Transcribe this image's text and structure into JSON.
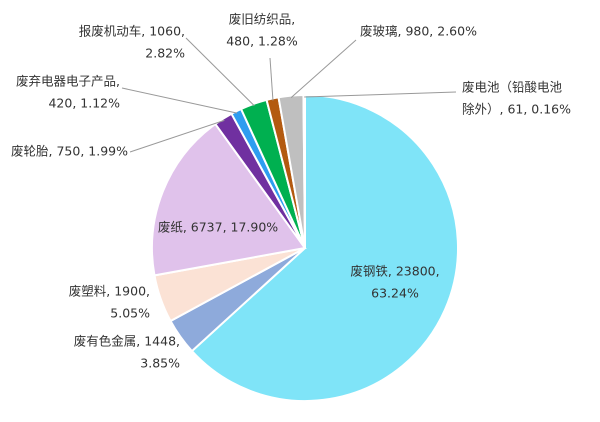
{
  "chart_data": {
    "type": "pie",
    "categories": [
      "废钢铁",
      "废有色金属",
      "废塑料",
      "废纸",
      "废轮胎",
      "废弃电器电子产品",
      "报废机动车",
      "废旧纺织品",
      "废玻璃",
      "废电池（铅酸电池除外）"
    ],
    "values": [
      23800,
      1448,
      1900,
      6737,
      750,
      420,
      1060,
      480,
      980,
      61
    ],
    "value_labels": [
      [
        "废钢铁, 23800,",
        "63.24%"
      ],
      [
        "废有色金属, 1448,",
        "3.85%"
      ],
      [
        "废塑料, 1900,",
        "5.05%"
      ],
      [
        "废纸, 6737, 17.90%"
      ],
      [
        "废轮胎, 750, 1.99%"
      ],
      [
        "废弃电器电子产品,",
        "420, 1.12%"
      ],
      [
        "报废机动车, 1060,",
        "2.82%"
      ],
      [
        "废旧纺织品,",
        "480, 1.28%"
      ],
      [
        "废玻璃, 980, 2.60%"
      ],
      [
        "废电池（铅酸电池",
        "除外）, 61, 0.16%"
      ]
    ],
    "colors": [
      "#7fe4f8",
      "#8eaadb",
      "#fbe2d5",
      "#e0c2eb",
      "#7030a0",
      "#2e9df0",
      "#00b050",
      "#b35a10",
      "#bfbfbf",
      "#5b9bd5"
    ]
  }
}
